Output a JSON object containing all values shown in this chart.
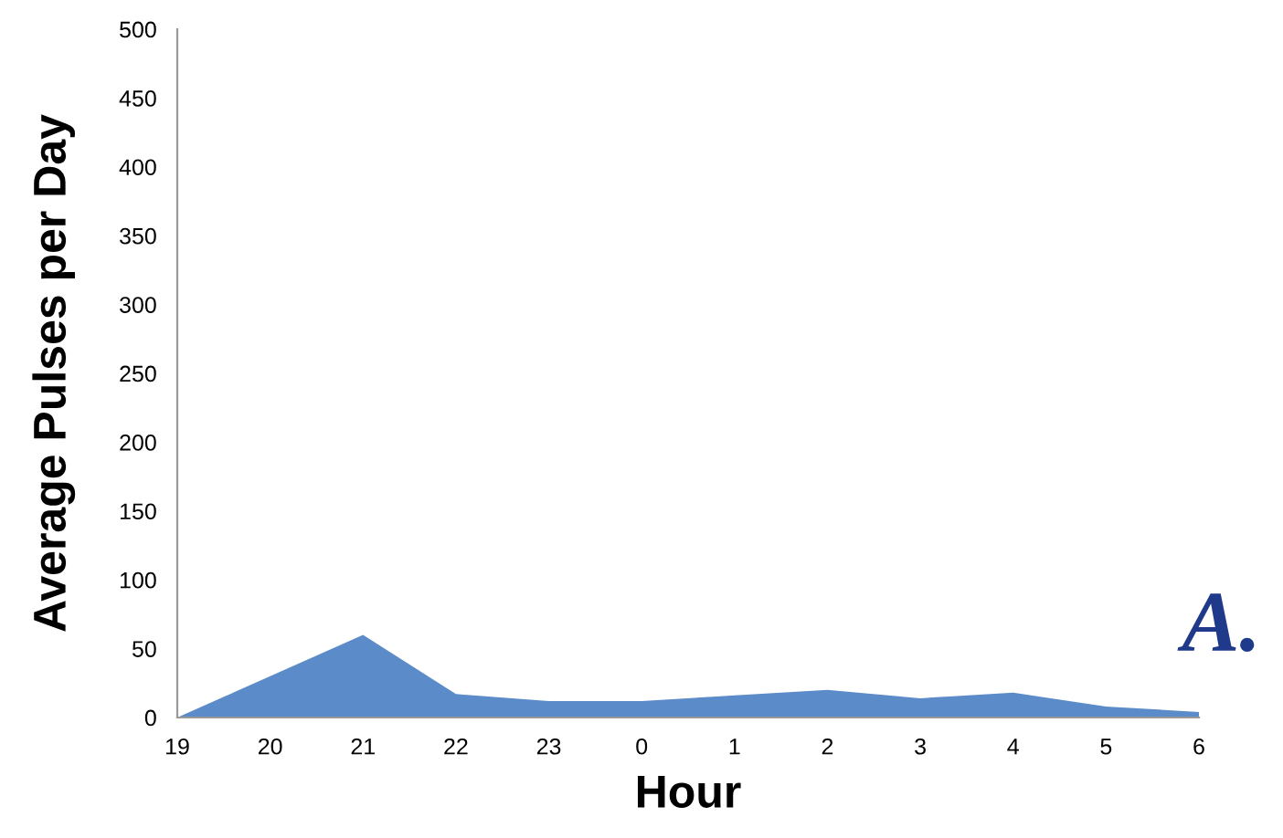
{
  "chart_data": {
    "type": "area",
    "xlabel": "Hour",
    "ylabel": "Average Pulses per Day",
    "categories": [
      "19",
      "20",
      "21",
      "22",
      "23",
      "0",
      "1",
      "2",
      "3",
      "4",
      "5",
      "6"
    ],
    "series": [
      {
        "color": "#5b8cc9",
        "values": [
          0,
          30,
          60,
          17,
          12,
          12,
          16,
          20,
          14,
          18,
          8,
          4
        ]
      }
    ],
    "ylim": [
      0,
      500
    ],
    "yticks": [
      0,
      50,
      100,
      150,
      200,
      250,
      300,
      350,
      400,
      450,
      500
    ],
    "grid": false,
    "legend": false,
    "annotations": [
      "A."
    ]
  }
}
